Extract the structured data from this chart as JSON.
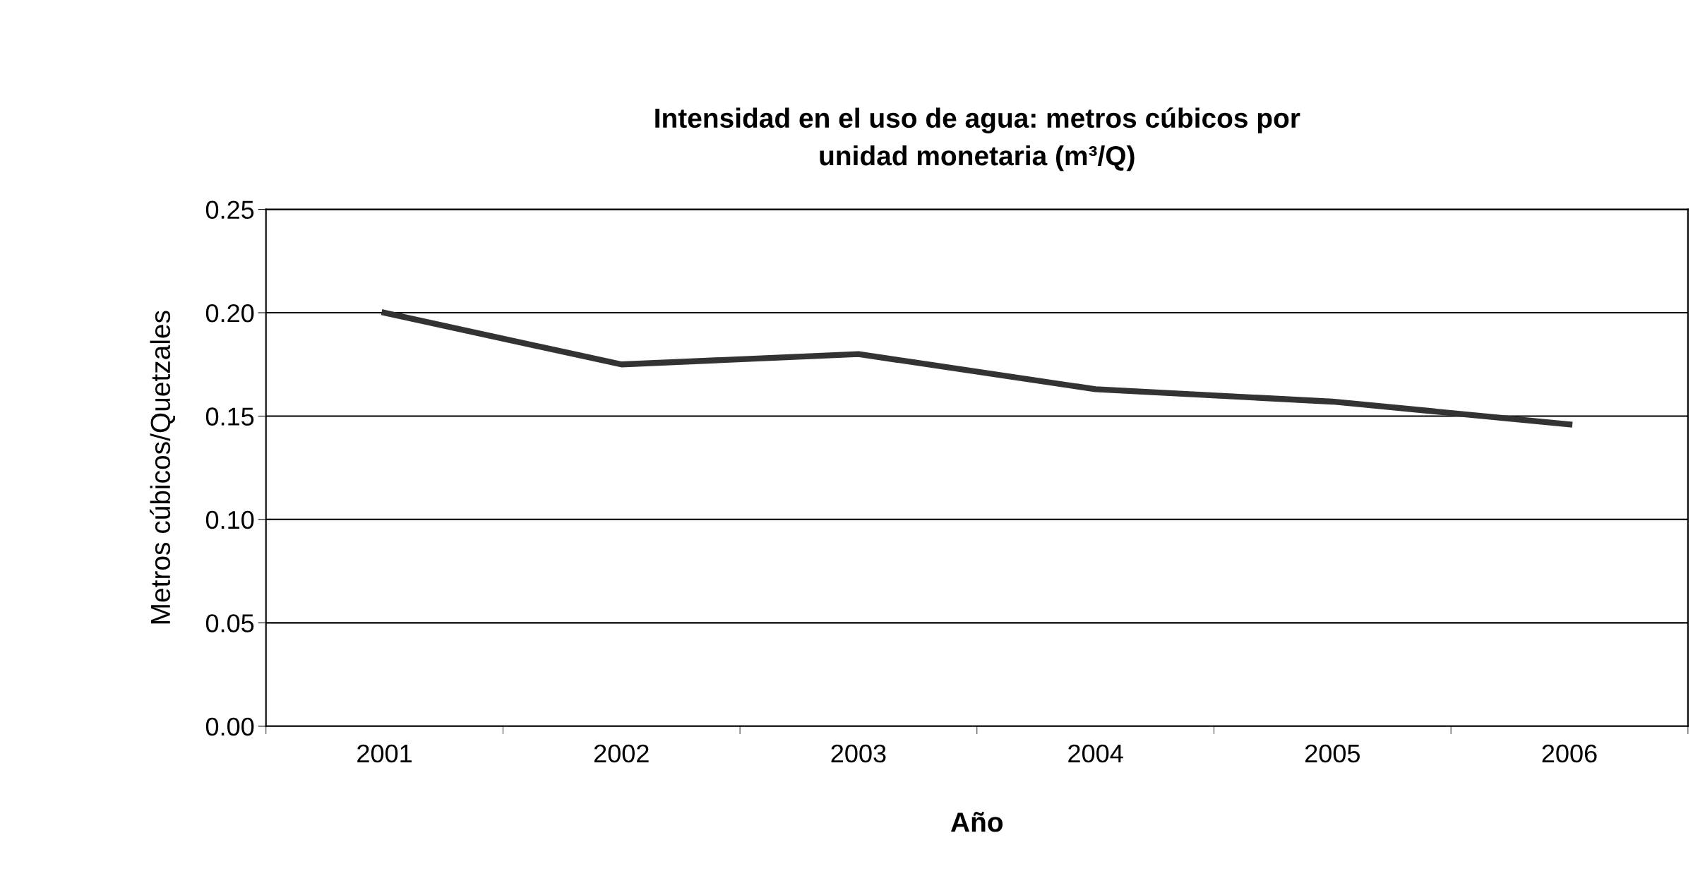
{
  "chart_data": {
    "type": "line",
    "title": "Intensidad en el uso de agua: metros cúbicos por\nunidad monetaria (m³/Q)",
    "xlabel": "Año",
    "ylabel": "Metros cúbicos/Quetzales",
    "categories": [
      "2001",
      "2002",
      "2003",
      "2004",
      "2005",
      "2006"
    ],
    "series": [
      {
        "color": "#333333",
        "values": [
          0.2,
          0.175,
          0.18,
          0.163,
          0.157,
          0.146
        ]
      }
    ],
    "ylim": [
      0,
      0.25
    ],
    "yticks": [
      {
        "value": 0,
        "label": "0.00"
      },
      {
        "value": 0.05,
        "label": "0.05"
      },
      {
        "value": 0.1,
        "label": "0.10"
      },
      {
        "value": 0.15,
        "label": "0.15"
      },
      {
        "value": 0.2,
        "label": "0.20"
      },
      {
        "value": 0.25,
        "label": "0.25"
      }
    ],
    "grid": "y",
    "legend": false,
    "marker": "none",
    "line_style": "solid"
  }
}
